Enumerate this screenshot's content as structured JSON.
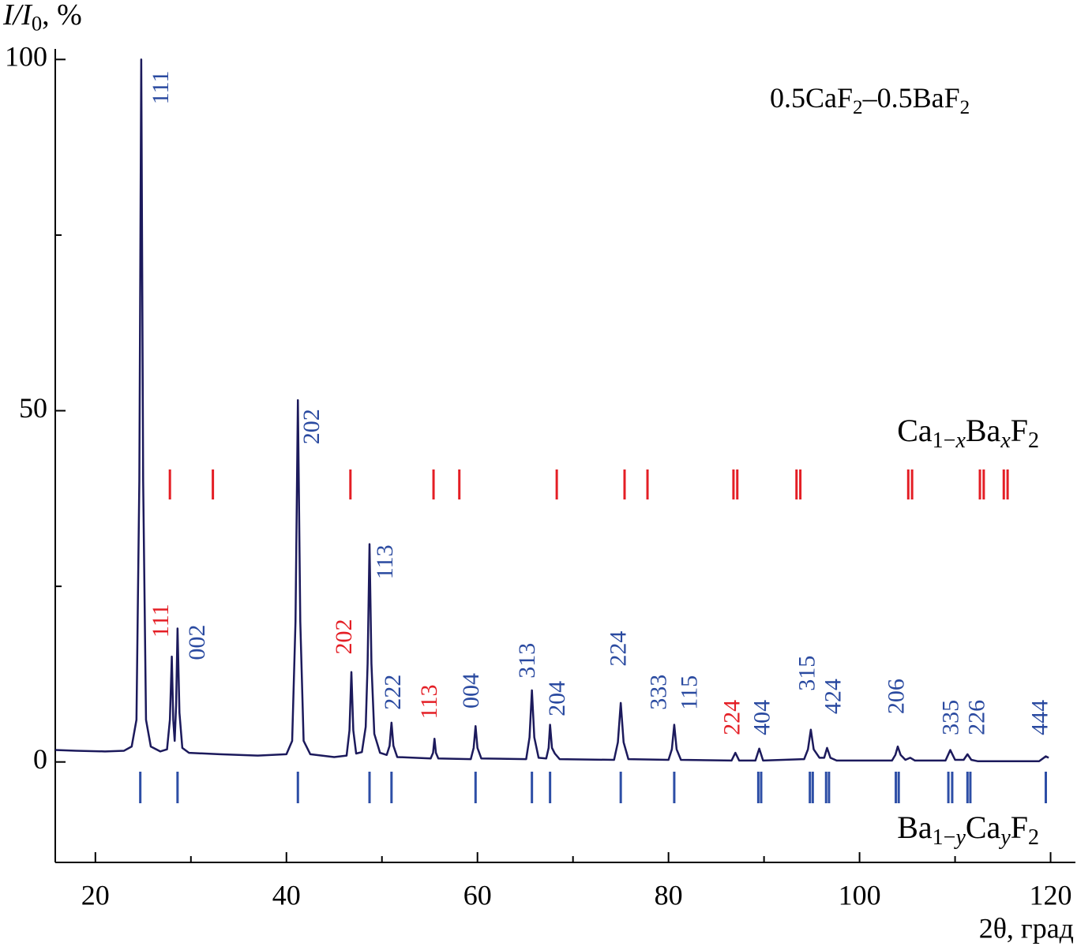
{
  "chart_data": {
    "type": "line",
    "title": [
      {
        "text": "0.5CaF"
      },
      {
        "text": "2",
        "sub": true
      },
      {
        "text": "–0.5BaF"
      },
      {
        "text": "2",
        "sub": true
      }
    ],
    "y_label": [
      {
        "text": "I/I",
        "italic": true
      },
      {
        "text": "0",
        "sub": true
      },
      {
        "text": ", %"
      }
    ],
    "x_label": "2θ, град",
    "color": "#1c1a5c",
    "xlim": [
      15.8,
      122.6
    ],
    "ylim": [
      -14.3,
      101.5
    ],
    "xticks": [
      20,
      40,
      60,
      80,
      100,
      120
    ],
    "xminor_ticks": [
      30,
      50,
      70,
      90,
      110
    ],
    "yticks": [
      0,
      50,
      100
    ],
    "yminor_ticks": [
      25,
      75
    ],
    "x": [
      15.8,
      18,
      21,
      23,
      23.8,
      24.3,
      24.6,
      24.8,
      25.0,
      25.3,
      25.8,
      26.8,
      27.5,
      27.8,
      28.0,
      28.15,
      28.3,
      28.45,
      28.6,
      28.8,
      29.1,
      29.8,
      33,
      37,
      40,
      40.6,
      40.95,
      41.2,
      41.45,
      41.8,
      42.5,
      45,
      46.3,
      46.6,
      46.8,
      47.0,
      47.3,
      47.9,
      48.3,
      48.5,
      48.7,
      48.9,
      49.2,
      49.8,
      50.5,
      50.8,
      51.0,
      51.2,
      51.6,
      55.1,
      55.35,
      55.5,
      55.65,
      55.9,
      59.3,
      59.6,
      59.8,
      60.0,
      60.4,
      65.1,
      65.45,
      65.7,
      65.95,
      66.4,
      67.2,
      67.45,
      67.6,
      67.8,
      68.1,
      68.6,
      74.3,
      74.7,
      75.0,
      75.3,
      75.8,
      80.0,
      80.35,
      80.6,
      80.85,
      81.3,
      86.6,
      87.0,
      87.4,
      89.1,
      89.5,
      89.9,
      94.2,
      94.6,
      94.9,
      95.2,
      95.8,
      96.3,
      96.6,
      96.95,
      97.6,
      103.4,
      103.75,
      104.0,
      104.3,
      104.8,
      105.3,
      105.8,
      109.0,
      109.5,
      110.0,
      110.9,
      111.3,
      111.7,
      112.4,
      118.8,
      119.5,
      119.8
    ],
    "values": [
      1.7,
      1.6,
      1.5,
      1.6,
      2.2,
      6,
      40,
      100,
      40,
      6,
      2.2,
      1.5,
      1.8,
      6,
      15,
      6,
      3,
      8,
      19,
      7,
      2,
      1.3,
      1.1,
      0.9,
      1.1,
      3,
      20,
      51.5,
      20,
      3,
      1.1,
      0.7,
      0.9,
      4.5,
      12.8,
      4.5,
      1.2,
      1.4,
      5,
      14,
      31,
      14,
      4,
      1.3,
      1.0,
      2.3,
      5.6,
      2.3,
      0.7,
      0.5,
      1.3,
      3.3,
      1.3,
      0.5,
      0.4,
      2,
      5.1,
      2,
      0.5,
      0.4,
      3.5,
      10.2,
      3.5,
      0.6,
      0.5,
      2,
      5.3,
      2,
      1.2,
      0.4,
      0.3,
      2.8,
      8.4,
      2.8,
      0.4,
      0.3,
      1.8,
      5.3,
      1.8,
      0.3,
      0.2,
      1.3,
      0.2,
      0.2,
      1.9,
      0.2,
      0.4,
      1.8,
      4.6,
      1.8,
      0.6,
      0.6,
      2.0,
      0.6,
      0.2,
      0.2,
      1.0,
      2.2,
      1.0,
      0.3,
      0.6,
      0.2,
      0.2,
      1.7,
      0.3,
      0.3,
      1.1,
      0.3,
      0.1,
      0.1,
      0.8,
      0.6
    ],
    "reference_phases": [
      {
        "name": [
          {
            "text": "Ca"
          },
          {
            "text": "1−",
            "sub": true
          },
          {
            "text": "x",
            "sub": true,
            "italic": true
          },
          {
            "text": "Ba"
          },
          {
            "text": "x",
            "sub": true,
            "italic": true
          },
          {
            "text": "F"
          },
          {
            "text": "2",
            "sub": true
          }
        ],
        "color": "#e41e25",
        "positions": [
          27.8,
          32.3,
          46.7,
          55.4,
          58.1,
          68.3,
          75.4,
          77.8,
          86.8,
          87.2,
          93.4,
          93.8,
          105.1,
          105.5,
          112.6,
          113.0,
          115.1,
          115.5
        ]
      },
      {
        "name": [
          {
            "text": "Ba"
          },
          {
            "text": "1−",
            "sub": true
          },
          {
            "text": "y",
            "sub": true,
            "italic": true
          },
          {
            "text": "Ca"
          },
          {
            "text": "y",
            "sub": true,
            "italic": true
          },
          {
            "text": "F"
          },
          {
            "text": "2",
            "sub": true
          }
        ],
        "color": "#2d4ea6",
        "positions": [
          24.7,
          28.6,
          41.2,
          48.7,
          51.0,
          59.8,
          65.7,
          67.6,
          75.0,
          80.6,
          89.4,
          89.7,
          94.8,
          95.1,
          96.5,
          96.8,
          103.8,
          104.1,
          109.3,
          109.7,
          111.3,
          111.6,
          119.5
        ]
      }
    ],
    "annotations": [
      {
        "text": "111",
        "color": "#2a4aa0",
        "x": 27.04,
        "y": 93.6
      },
      {
        "text": "111",
        "color": "#e41e25",
        "x": 27.04,
        "y": 17.7
      },
      {
        "text": "002",
        "color": "#2a4aa0",
        "x": 30.84,
        "y": 14.5
      },
      {
        "text": "202",
        "color": "#2a4aa0",
        "x": 42.82,
        "y": 45.2
      },
      {
        "text": "202",
        "color": "#e41e25",
        "x": 46.21,
        "y": 15.3
      },
      {
        "text": "113",
        "color": "#2a4aa0",
        "x": 50.51,
        "y": 26.0
      },
      {
        "text": "222",
        "color": "#2a4aa0",
        "x": 51.34,
        "y": 7.4
      },
      {
        "text": "113",
        "color": "#e41e25",
        "x": 55.14,
        "y": 6.1
      },
      {
        "text": "004",
        "color": "#2a4aa0",
        "x": 59.52,
        "y": 7.6
      },
      {
        "text": "313",
        "color": "#2a4aa0",
        "x": 65.39,
        "y": 11.9
      },
      {
        "text": "204",
        "color": "#2a4aa0",
        "x": 68.53,
        "y": 6.5
      },
      {
        "text": "224",
        "color": "#2a4aa0",
        "x": 74.97,
        "y": 13.6
      },
      {
        "text": "333",
        "color": "#2a4aa0",
        "x": 79.19,
        "y": 7.4
      },
      {
        "text": "115",
        "color": "#2a4aa0",
        "x": 82.41,
        "y": 7.4
      },
      {
        "text": "224",
        "color": "#e41e25",
        "x": 86.87,
        "y": 3.8
      },
      {
        "text": "404",
        "color": "#2a4aa0",
        "x": 90.01,
        "y": 3.8
      },
      {
        "text": "315",
        "color": "#2a4aa0",
        "x": 94.73,
        "y": 10.1
      },
      {
        "text": "424",
        "color": "#2a4aa0",
        "x": 97.45,
        "y": 6.8
      },
      {
        "text": "206",
        "color": "#2a4aa0",
        "x": 104.06,
        "y": 6.8
      },
      {
        "text": "335",
        "color": "#2a4aa0",
        "x": 109.77,
        "y": 3.8
      },
      {
        "text": "226",
        "color": "#2a4aa0",
        "x": 112.49,
        "y": 3.8
      },
      {
        "text": "444",
        "color": "#2a4aa0",
        "x": 119.1,
        "y": 3.8
      }
    ]
  }
}
